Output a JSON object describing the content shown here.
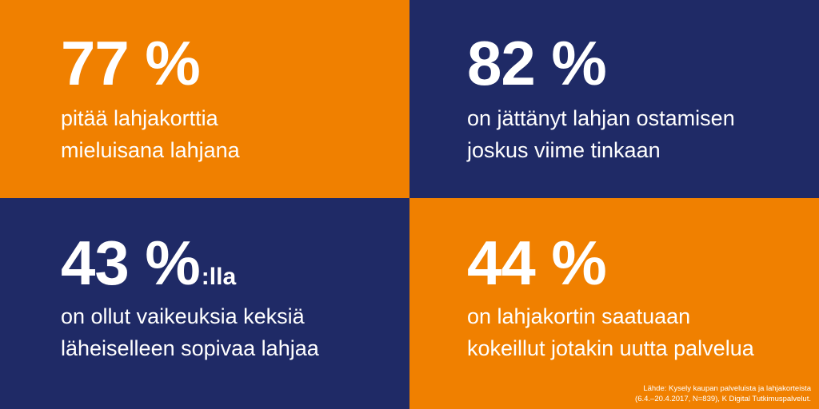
{
  "colors": {
    "orange": "#f08000",
    "navy": "#1f2a66",
    "text": "#ffffff"
  },
  "tiles": [
    {
      "stat": "77 %",
      "suffix": "",
      "line1": "pitää lahjakorttia",
      "line2": "mieluisana lahjana"
    },
    {
      "stat": "82 %",
      "suffix": "",
      "line1": "on jättänyt lahjan ostamisen",
      "line2": "joskus viime tinkaan"
    },
    {
      "stat": "43 %",
      "suffix": ":lla",
      "line1": "on ollut vaikeuksia keksiä",
      "line2": "läheiselleen sopivaa lahjaa"
    },
    {
      "stat": "44 %",
      "suffix": "",
      "line1": "on lahjakortin saatuaan",
      "line2": "kokeillut jotakin uutta palvelua"
    }
  ],
  "source": {
    "line1": "Lähde: Kysely kaupan palveluista ja lahjakorteista",
    "line2": "(6.4.–20.4.2017, N=839), K Digital Tutkimuspalvelut."
  }
}
